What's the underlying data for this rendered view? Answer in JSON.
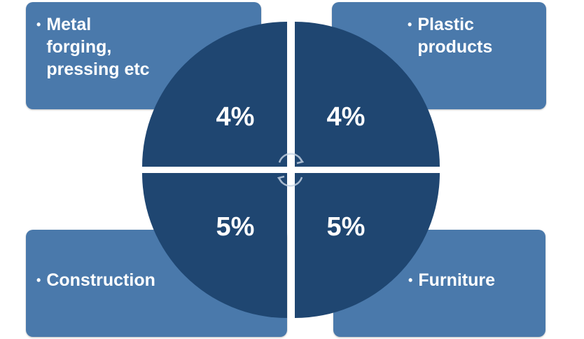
{
  "segments": [
    {
      "id": "tl",
      "label": "Metal\nforging,\npressing etc",
      "percent": "4%"
    },
    {
      "id": "tr",
      "label": "Plastic\nproducts",
      "percent": "4%"
    },
    {
      "id": "bl",
      "label": "Construction",
      "percent": "5%"
    },
    {
      "id": "br",
      "label": "Furniture",
      "percent": "5%"
    }
  ],
  "bullet": "•",
  "colors": {
    "box": "#4a79ab",
    "circle": "#1f4671",
    "text": "#ffffff"
  },
  "icons": [
    "circular-arrows-icon"
  ]
}
